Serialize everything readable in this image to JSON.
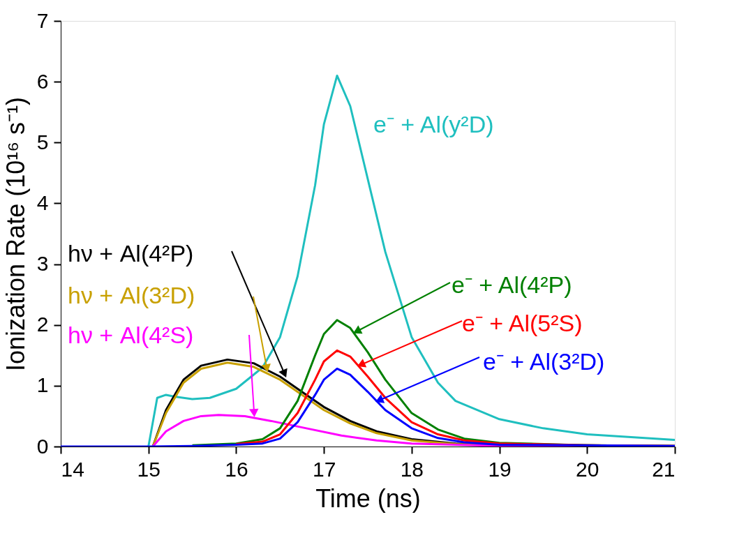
{
  "chart_data": {
    "type": "line",
    "xlabel": "Time (ns)",
    "ylabel": "Ionization Rate (10¹⁶ s⁻¹)",
    "xlim": [
      14,
      21
    ],
    "ylim": [
      0,
      7
    ],
    "xticks": [
      14,
      15,
      16,
      17,
      18,
      19,
      20,
      21
    ],
    "yticks": [
      0,
      1,
      2,
      3,
      4,
      5,
      6,
      7
    ],
    "grid": false,
    "marker": "none",
    "line_style": "solid",
    "series": [
      {
        "name": "e⁻ + Al(y²D)",
        "color": "#1fbfbf",
        "x": [
          15.0,
          15.1,
          15.2,
          15.3,
          15.5,
          15.7,
          16.0,
          16.3,
          16.5,
          16.7,
          16.9,
          17.0,
          17.15,
          17.3,
          17.5,
          17.7,
          18.0,
          18.3,
          18.5,
          19.0,
          19.5,
          20.0,
          21.0
        ],
        "values": [
          0,
          0.8,
          0.85,
          0.82,
          0.78,
          0.8,
          0.95,
          1.3,
          1.8,
          2.8,
          4.3,
          5.3,
          6.1,
          5.6,
          4.4,
          3.2,
          1.8,
          1.05,
          0.75,
          0.45,
          0.3,
          0.2,
          0.11
        ]
      },
      {
        "name": "hν + Al(4²P)",
        "color": "#000000",
        "x": [
          15.05,
          15.2,
          15.4,
          15.6,
          15.9,
          16.2,
          16.5,
          16.8,
          17.0,
          17.3,
          17.6,
          18.0,
          18.5,
          19.0,
          21.0
        ],
        "values": [
          0,
          0.6,
          1.1,
          1.33,
          1.43,
          1.37,
          1.15,
          0.85,
          0.65,
          0.42,
          0.25,
          0.12,
          0.05,
          0.03,
          0.01
        ]
      },
      {
        "name": "hν + Al(3²D)",
        "color": "#c8a000",
        "x": [
          15.05,
          15.2,
          15.4,
          15.6,
          15.9,
          16.2,
          16.5,
          16.8,
          17.0,
          17.3,
          17.6,
          18.0,
          18.5,
          21.0
        ],
        "values": [
          0,
          0.55,
          1.05,
          1.28,
          1.38,
          1.31,
          1.1,
          0.8,
          0.6,
          0.38,
          0.22,
          0.1,
          0.04,
          0.01
        ]
      },
      {
        "name": "hν + Al(4²S)",
        "color": "#ff00ff",
        "x": [
          15.05,
          15.2,
          15.4,
          15.6,
          15.8,
          16.1,
          16.4,
          16.8,
          17.2,
          17.6,
          18.0,
          19.0,
          21.0
        ],
        "values": [
          0,
          0.25,
          0.42,
          0.5,
          0.52,
          0.5,
          0.42,
          0.3,
          0.18,
          0.1,
          0.05,
          0.01,
          0
        ]
      },
      {
        "name": "e⁻ + Al(4²P)",
        "color": "#008000",
        "x": [
          15.5,
          16.0,
          16.3,
          16.5,
          16.7,
          16.9,
          17.0,
          17.15,
          17.3,
          17.5,
          17.7,
          18.0,
          18.3,
          18.6,
          19.0,
          20.0,
          21.0
        ],
        "values": [
          0.02,
          0.05,
          0.12,
          0.3,
          0.75,
          1.5,
          1.85,
          2.08,
          1.95,
          1.55,
          1.1,
          0.55,
          0.28,
          0.13,
          0.06,
          0.02,
          0.01
        ]
      },
      {
        "name": "e⁻ + Al(5²S)",
        "color": "#ff0000",
        "x": [
          16.0,
          16.3,
          16.5,
          16.7,
          16.9,
          17.0,
          17.15,
          17.3,
          17.5,
          17.7,
          18.0,
          18.3,
          18.6,
          19.0,
          20.0,
          21.0
        ],
        "values": [
          0.04,
          0.08,
          0.2,
          0.55,
          1.1,
          1.4,
          1.58,
          1.48,
          1.15,
          0.8,
          0.4,
          0.2,
          0.1,
          0.05,
          0.02,
          0.01
        ]
      },
      {
        "name": "e⁻ + Al(3²D)",
        "color": "#0000ff",
        "x": [
          14,
          15.0,
          15.5,
          16.0,
          16.3,
          16.5,
          16.7,
          16.9,
          17.0,
          17.15,
          17.3,
          17.5,
          17.7,
          18.0,
          18.3,
          18.6,
          19.0,
          21.0
        ],
        "values": [
          0,
          0,
          0.01,
          0.03,
          0.05,
          0.13,
          0.4,
          0.85,
          1.1,
          1.28,
          1.18,
          0.9,
          0.6,
          0.3,
          0.14,
          0.07,
          0.03,
          0.01
        ]
      }
    ]
  }
}
